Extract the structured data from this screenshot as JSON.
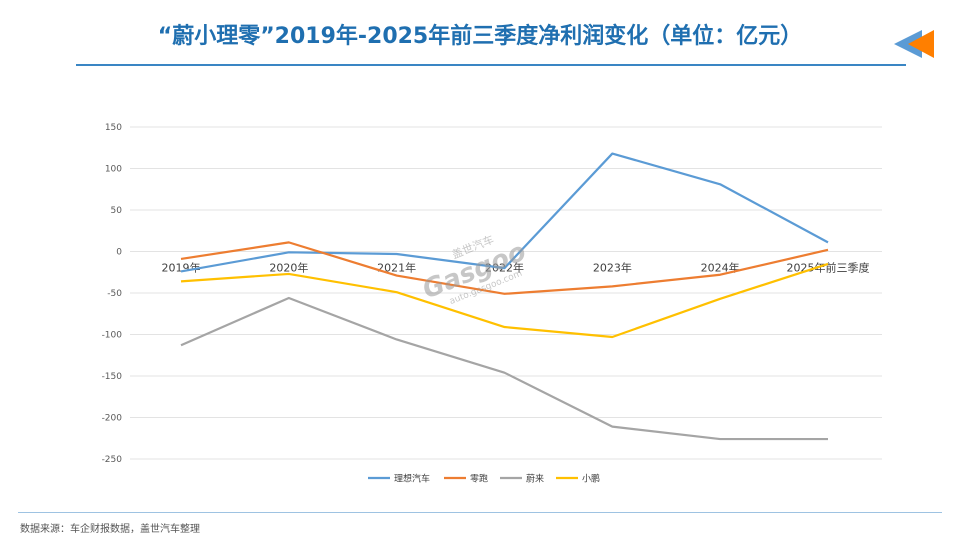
{
  "header": {
    "title": "“蔚小理零”2019年-2025年前三季度净利润变化（单位：亿元）"
  },
  "footer": {
    "source": "数据来源：车企财报数据，盖世汽车整理"
  },
  "watermark": {
    "brand": "Gasgoo",
    "cn": "盖世汽车",
    "url": "auto.gasgoo.com"
  },
  "chart_data": {
    "type": "line",
    "categories": [
      "2019年",
      "2020年",
      "2021年",
      "2022年",
      "2023年",
      "2024年",
      "2025年前三季度"
    ],
    "series": [
      {
        "name": "理想汽车",
        "color": "#5b9bd5",
        "values": [
          -24,
          -1,
          -3,
          -20,
          118,
          81,
          11
        ]
      },
      {
        "name": "零跑",
        "color": "#ed7d31",
        "values": [
          -9,
          11,
          -29,
          -51,
          -42,
          -28,
          2
        ]
      },
      {
        "name": "蔚来",
        "color": "#a5a5a5",
        "values": [
          -113,
          -56,
          -106,
          -146,
          -211,
          -226,
          -226
        ]
      },
      {
        "name": "小鹏",
        "color": "#ffc000",
        "values": [
          -36,
          -27,
          -49,
          -91,
          -103,
          -57,
          -15
        ]
      }
    ],
    "yticks": [
      "150",
      "100",
      "50",
      "0",
      "-50",
      "-100",
      "-150",
      "-200",
      "-250"
    ],
    "ylim": [
      -250,
      150
    ],
    "grid": true,
    "legend": "bottom"
  }
}
